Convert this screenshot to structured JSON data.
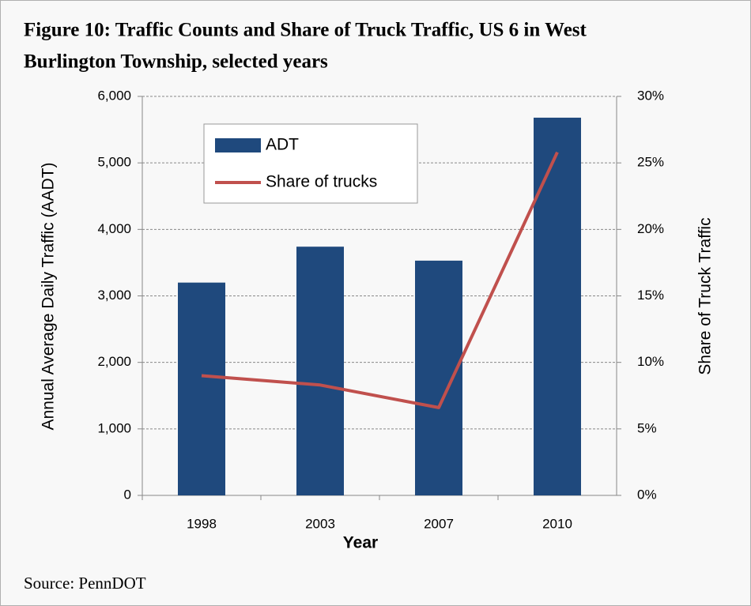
{
  "chart_data": {
    "type": "bar",
    "title_lines": [
      "Figure 10: Traffic Counts and Share of Truck Traffic, US 6 in West",
      "Burlington Township, selected years"
    ],
    "categories": [
      "1998",
      "2003",
      "2007",
      "2010"
    ],
    "series": [
      {
        "name": "ADT",
        "color": "#1f497d",
        "values": [
          3200,
          3740,
          3530,
          5680
        ]
      },
      {
        "name": "Share of trucks",
        "color": "#c0504d",
        "values": [
          9.0,
          8.3,
          6.6,
          25.8
        ],
        "axis": "y2"
      }
    ],
    "ylim": [
      0,
      6000
    ],
    "yticks": [
      0,
      {
        "value": 1000,
        "label": "1,000"
      },
      {
        "value": 2000,
        "label": "2,000"
      },
      {
        "value": 3000,
        "label": "3,000"
      },
      {
        "value": 4000,
        "label": "4,000"
      },
      {
        "value": 5000,
        "label": "5,000"
      },
      {
        "value": 6000,
        "label": "6,000"
      }
    ],
    "y2lim": [
      0,
      30
    ],
    "y2ticks": [
      {
        "value": 0,
        "label": "0%"
      },
      {
        "value": 5,
        "label": "5%"
      },
      {
        "value": 10,
        "label": "10%"
      },
      {
        "value": 15,
        "label": "15%"
      },
      {
        "value": 20,
        "label": "20%"
      },
      {
        "value": 25,
        "label": "25%"
      },
      {
        "value": 30,
        "label": "30%"
      }
    ],
    "ylabel": "Annual Average Daily Traffic (AADT)",
    "y2label": "Share of Truck Traffic",
    "xlabel": "Year",
    "grid": true,
    "legend": "upper left",
    "source": "Source: PennDOT"
  }
}
